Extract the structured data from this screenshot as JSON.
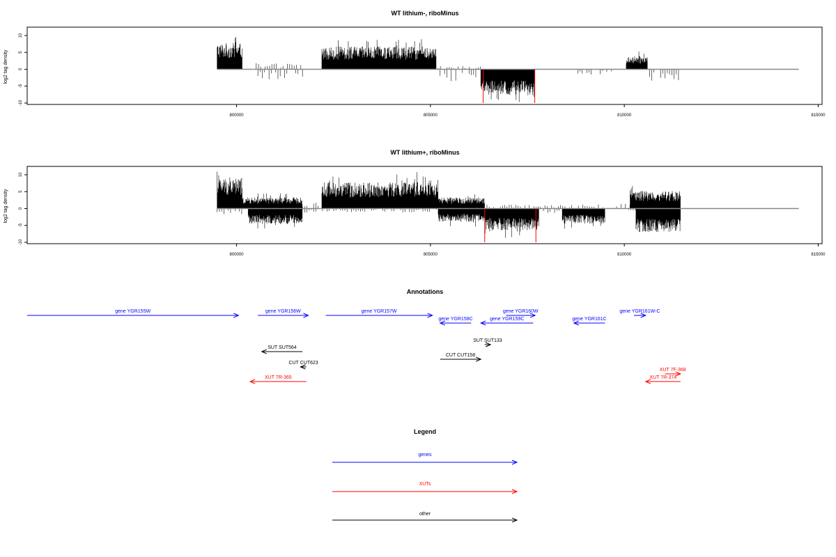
{
  "colors": {
    "gene": "#0000ff",
    "xut": "#ff0000",
    "other": "#000000",
    "signal": "#000000",
    "highlight": "#ff0000",
    "baseline": "#888888"
  },
  "panels": [
    {
      "title": "WT lithium-, riboMinus",
      "ylabel": "log2 tag density"
    },
    {
      "title": "WT lithium+, riboMinus",
      "ylabel": "log2 tag density"
    }
  ],
  "annotations_panel": {
    "title": "Annotations"
  },
  "legend": {
    "title": "Legend",
    "entries": [
      {
        "label": "genes",
        "kind": "gene"
      },
      {
        "label": "XUTs",
        "kind": "xut"
      },
      {
        "label": "other",
        "kind": "other"
      }
    ]
  },
  "chart_data": [
    {
      "type": "bar",
      "title": "WT lithium-, riboMinus",
      "xlabel": "",
      "ylabel": "log2 tag density",
      "xlim": [
        794600,
        815100
      ],
      "ylim": [
        -10,
        12.5
      ],
      "xticks": [
        800000,
        805000,
        810000,
        815000
      ],
      "xtick_labels": [
        "800000",
        "805000",
        "810000",
        "815000"
      ],
      "yticks": [
        10,
        5,
        0,
        -5,
        -10
      ],
      "ytick_labels": [
        "10",
        "5",
        "0",
        "-5",
        "-10"
      ],
      "baseline_range": [
        799500,
        814500
      ],
      "regions": [
        {
          "strand": "+",
          "start": 799500,
          "end": 800150,
          "level": 6
        },
        {
          "strand": "+",
          "start": 800450,
          "end": 801700,
          "level": 1.5,
          "sparse": true
        },
        {
          "strand": "+",
          "start": 802200,
          "end": 805150,
          "level": 5.2
        },
        {
          "strand": "+",
          "start": 805200,
          "end": 806300,
          "level": 0.8,
          "sparse": true
        },
        {
          "strand": "+",
          "start": 810050,
          "end": 810600,
          "level": 3
        },
        {
          "strand": "-",
          "start": 800550,
          "end": 801800,
          "level": 2.5,
          "sparse": true
        },
        {
          "strand": "-",
          "start": 805250,
          "end": 806200,
          "level": 3,
          "sparse": true
        },
        {
          "strand": "-",
          "start": 806300,
          "end": 807700,
          "level": 6
        },
        {
          "strand": "-",
          "start": 808800,
          "end": 809700,
          "level": 1.5,
          "sparse": true
        },
        {
          "strand": "-",
          "start": 810650,
          "end": 811450,
          "level": 3,
          "sparse": true
        }
      ],
      "highlights": [
        {
          "x": 806360,
          "value": -10
        },
        {
          "x": 807690,
          "value": -10
        }
      ]
    },
    {
      "type": "bar",
      "title": "WT lithium+, riboMinus",
      "xlabel": "",
      "ylabel": "log2 tag density",
      "xlim": [
        794600,
        815100
      ],
      "ylim": [
        -10,
        12.5
      ],
      "xticks": [
        800000,
        805000,
        810000,
        815000
      ],
      "xtick_labels": [
        "800000",
        "805000",
        "810000",
        "815000"
      ],
      "yticks": [
        10,
        5,
        0,
        -5,
        -10
      ],
      "ytick_labels": [
        "10",
        "5",
        "0",
        "-5",
        "-10"
      ],
      "baseline_range": [
        799500,
        814500
      ],
      "regions": [
        {
          "strand": "+",
          "start": 799500,
          "end": 800150,
          "level": 7
        },
        {
          "strand": "+",
          "start": 800150,
          "end": 801700,
          "level": 2.5
        },
        {
          "strand": "+",
          "start": 801700,
          "end": 802150,
          "level": 1.5,
          "sparse": true
        },
        {
          "strand": "+",
          "start": 802200,
          "end": 805200,
          "level": 6
        },
        {
          "strand": "+",
          "start": 805200,
          "end": 806400,
          "level": 2.5
        },
        {
          "strand": "+",
          "start": 806400,
          "end": 809500,
          "level": 1,
          "sparse": true
        },
        {
          "strand": "+",
          "start": 809800,
          "end": 810150,
          "level": 1.5,
          "sparse": true
        },
        {
          "strand": "+",
          "start": 810150,
          "end": 811450,
          "level": 4
        },
        {
          "strand": "-",
          "start": 799500,
          "end": 800150,
          "level": 1.5,
          "sparse": true
        },
        {
          "strand": "-",
          "start": 800300,
          "end": 801700,
          "level": 3.5
        },
        {
          "strand": "-",
          "start": 801700,
          "end": 805200,
          "level": 1,
          "sparse": true
        },
        {
          "strand": "-",
          "start": 805200,
          "end": 806400,
          "level": 3
        },
        {
          "strand": "-",
          "start": 806400,
          "end": 807800,
          "level": 5
        },
        {
          "strand": "-",
          "start": 807800,
          "end": 808400,
          "level": 1.5,
          "sparse": true
        },
        {
          "strand": "-",
          "start": 808400,
          "end": 809500,
          "level": 3.5
        },
        {
          "strand": "-",
          "start": 810000,
          "end": 810300,
          "level": 1,
          "sparse": true
        },
        {
          "strand": "-",
          "start": 810300,
          "end": 811450,
          "level": 5.5
        }
      ],
      "highlights": [
        {
          "x": 806400,
          "value": -10
        },
        {
          "x": 807720,
          "value": -10
        }
      ]
    },
    {
      "type": "annotations",
      "title": "Annotations",
      "xlim": [
        794600,
        815100
      ],
      "features": [
        {
          "label": "gene YGR155W",
          "kind": "gene",
          "start": 794600,
          "end": 800050,
          "strand": "+",
          "row": 0
        },
        {
          "label": "gene YGR156W",
          "kind": "gene",
          "start": 800550,
          "end": 801850,
          "strand": "+",
          "row": 0
        },
        {
          "label": "gene YGR157W",
          "kind": "gene",
          "start": 802300,
          "end": 805050,
          "strand": "+",
          "row": 0
        },
        {
          "label": "gene YGR160W",
          "kind": "gene",
          "start": 806950,
          "end": 807700,
          "strand": "+",
          "row": 0
        },
        {
          "label": "gene YGR161W-C",
          "kind": "gene",
          "start": 810250,
          "end": 810550,
          "strand": "+",
          "row": 0
        },
        {
          "label": "gene YGR158C",
          "kind": "gene",
          "start": 805250,
          "end": 806050,
          "strand": "-",
          "row": 1
        },
        {
          "label": "gene YGR159C",
          "kind": "gene",
          "start": 806300,
          "end": 807650,
          "strand": "-",
          "row": 1
        },
        {
          "label": "gene YGR161C",
          "kind": "gene",
          "start": 808700,
          "end": 809500,
          "strand": "-",
          "row": 1
        },
        {
          "label": "SUT SUT133",
          "kind": "other",
          "start": 806400,
          "end": 806550,
          "strand": "+",
          "row": 2
        },
        {
          "label": "SUT SUT564",
          "kind": "other",
          "start": 800650,
          "end": 801700,
          "strand": "-",
          "row": 3
        },
        {
          "label": "CUT CUT158",
          "kind": "other",
          "start": 805250,
          "end": 806300,
          "strand": "+",
          "row": 4
        },
        {
          "label": "CUT CUT623",
          "kind": "other",
          "start": 801650,
          "end": 801800,
          "strand": "-",
          "row": 5
        },
        {
          "label": "XUT 7F-368",
          "kind": "xut",
          "start": 811050,
          "end": 811450,
          "strand": "+",
          "row": 6
        },
        {
          "label": "XUT 7R-365",
          "kind": "xut",
          "start": 800350,
          "end": 801800,
          "strand": "-",
          "row": 7
        },
        {
          "label": "XUT 7R-374",
          "kind": "xut",
          "start": 810550,
          "end": 811450,
          "strand": "-",
          "row": 7
        }
      ]
    }
  ]
}
